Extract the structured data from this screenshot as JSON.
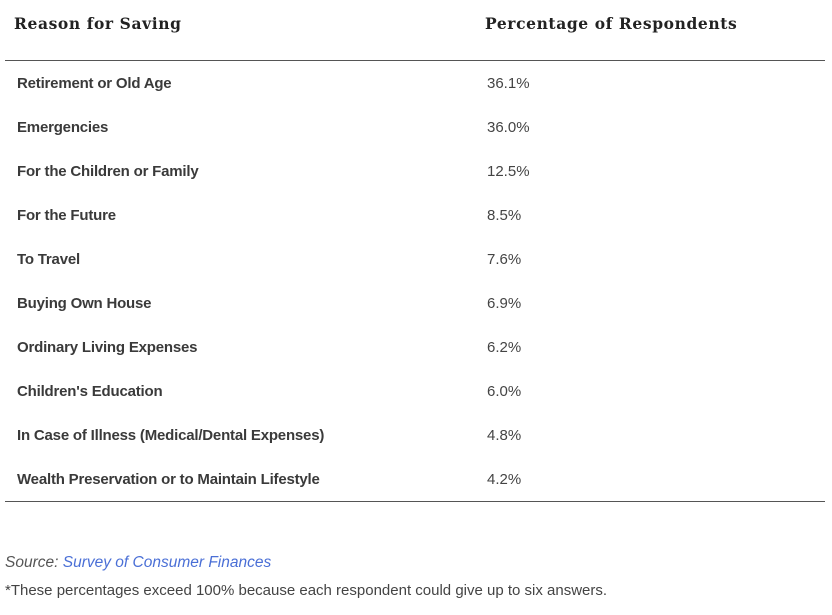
{
  "table": {
    "headers": [
      "Reason for Saving",
      "Percentage of Respondents"
    ],
    "rows": [
      {
        "reason": "Retirement or Old Age",
        "percentage": "36.1%"
      },
      {
        "reason": "Emergencies",
        "percentage": "36.0%"
      },
      {
        "reason": "For the Children or Family",
        "percentage": "12.5%"
      },
      {
        "reason": "For the Future",
        "percentage": "8.5%"
      },
      {
        "reason": "To Travel",
        "percentage": "7.6%"
      },
      {
        "reason": "Buying Own House",
        "percentage": "6.9%"
      },
      {
        "reason": "Ordinary Living Expenses",
        "percentage": "6.2%"
      },
      {
        "reason": "Children's Education",
        "percentage": "6.0%"
      },
      {
        "reason": "In Case of Illness (Medical/Dental Expenses)",
        "percentage": "4.8%"
      },
      {
        "reason": "Wealth Preservation or to Maintain Lifestyle",
        "percentage": "4.2%"
      }
    ]
  },
  "source": {
    "label": "Source: ",
    "link_text": "Survey of Consumer Finances"
  },
  "footnote": "*These percentages exceed 100% because each respondent could give up to six answers.",
  "colors": {
    "link": "#4a6fd6",
    "rule": "#555555"
  }
}
